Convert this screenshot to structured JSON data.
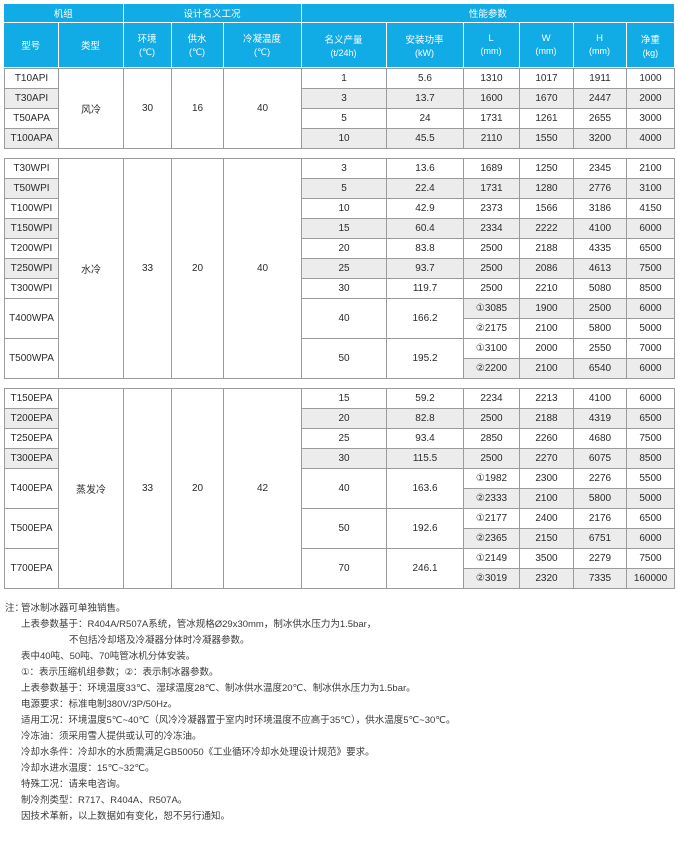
{
  "colors": {
    "accent": "#11ace5",
    "row_shade": "#ececec",
    "border": "#9b9b9b"
  },
  "header": {
    "groups": [
      {
        "label": "机组",
        "span": 2
      },
      {
        "label": "设计名义工况",
        "span": 3
      },
      {
        "label": "性能参数",
        "span": 6
      }
    ],
    "columns": [
      {
        "label": "型号",
        "unit": ""
      },
      {
        "label": "类型",
        "unit": ""
      },
      {
        "label": "环境",
        "unit": "(℃)"
      },
      {
        "label": "供水",
        "unit": "(℃)"
      },
      {
        "label": "冷凝温度",
        "unit": "(℃)"
      },
      {
        "label": "名义产量",
        "unit": "(t/24h)"
      },
      {
        "label": "安装功率",
        "unit": "(kW)"
      },
      {
        "label": "L",
        "unit": "(mm)"
      },
      {
        "label": "W",
        "unit": "(mm)"
      },
      {
        "label": "H",
        "unit": "(mm)"
      },
      {
        "label": "净重",
        "unit": "(kg)"
      }
    ]
  },
  "sections": [
    {
      "type": "风冷",
      "ambient": "30",
      "supply": "16",
      "cond_temp": "40",
      "models": [
        {
          "model": "T10API",
          "capacity": "1",
          "power": "5.6",
          "dims": [
            {
              "L": "1310",
              "W": "1017",
              "H": "1911",
              "weight": "1000",
              "shaded": false
            }
          ]
        },
        {
          "model": "T30API",
          "capacity": "3",
          "power": "13.7",
          "dims": [
            {
              "L": "1600",
              "W": "1670",
              "H": "2447",
              "weight": "2000",
              "shaded": true
            }
          ]
        },
        {
          "model": "T50APA",
          "capacity": "5",
          "power": "24",
          "dims": [
            {
              "L": "1731",
              "W": "1261",
              "H": "2655",
              "weight": "3000",
              "shaded": false
            }
          ]
        },
        {
          "model": "T100APA",
          "capacity": "10",
          "power": "45.5",
          "dims": [
            {
              "L": "2110",
              "W": "1550",
              "H": "3200",
              "weight": "4000",
              "shaded": true
            }
          ]
        }
      ]
    },
    {
      "type": "水冷",
      "ambient": "33",
      "supply": "20",
      "cond_temp": "40",
      "models": [
        {
          "model": "T30WPI",
          "capacity": "3",
          "power": "13.6",
          "dims": [
            {
              "L": "1689",
              "W": "1250",
              "H": "2345",
              "weight": "2100",
              "shaded": false
            }
          ]
        },
        {
          "model": "T50WPI",
          "capacity": "5",
          "power": "22.4",
          "dims": [
            {
              "L": "1731",
              "W": "1280",
              "H": "2776",
              "weight": "3100",
              "shaded": true
            }
          ]
        },
        {
          "model": "T100WPI",
          "capacity": "10",
          "power": "42.9",
          "dims": [
            {
              "L": "2373",
              "W": "1566",
              "H": "3186",
              "weight": "4150",
              "shaded": false
            }
          ]
        },
        {
          "model": "T150WPI",
          "capacity": "15",
          "power": "60.4",
          "dims": [
            {
              "L": "2334",
              "W": "2222",
              "H": "4100",
              "weight": "6000",
              "shaded": true
            }
          ]
        },
        {
          "model": "T200WPI",
          "capacity": "20",
          "power": "83.8",
          "dims": [
            {
              "L": "2500",
              "W": "2188",
              "H": "4335",
              "weight": "6500",
              "shaded": false
            }
          ]
        },
        {
          "model": "T250WPI",
          "capacity": "25",
          "power": "93.7",
          "dims": [
            {
              "L": "2500",
              "W": "2086",
              "H": "4613",
              "weight": "7500",
              "shaded": true
            }
          ]
        },
        {
          "model": "T300WPI",
          "capacity": "30",
          "power": "119.7",
          "dims": [
            {
              "L": "2500",
              "W": "2210",
              "H": "5080",
              "weight": "8500",
              "shaded": false
            }
          ]
        },
        {
          "model": "T400WPA",
          "capacity": "40",
          "power": "166.2",
          "dims": [
            {
              "L": "①3085",
              "W": "1900",
              "H": "2500",
              "weight": "6000",
              "shaded": true
            },
            {
              "L": "②2175",
              "W": "2100",
              "H": "5800",
              "weight": "5000",
              "shaded": false
            }
          ]
        },
        {
          "model": "T500WPA",
          "capacity": "50",
          "power": "195.2",
          "dims": [
            {
              "L": "①3100",
              "W": "2000",
              "H": "2550",
              "weight": "7000",
              "shaded": false
            },
            {
              "L": "②2200",
              "W": "2100",
              "H": "6540",
              "weight": "6000",
              "shaded": true
            }
          ]
        }
      ]
    },
    {
      "type": "蒸发冷",
      "ambient": "33",
      "supply": "20",
      "cond_temp": "42",
      "models": [
        {
          "model": "T150EPA",
          "capacity": "15",
          "power": "59.2",
          "dims": [
            {
              "L": "2234",
              "W": "2213",
              "H": "4100",
              "weight": "6000",
              "shaded": false
            }
          ]
        },
        {
          "model": "T200EPA",
          "capacity": "20",
          "power": "82.8",
          "dims": [
            {
              "L": "2500",
              "W": "2188",
              "H": "4319",
              "weight": "6500",
              "shaded": true
            }
          ]
        },
        {
          "model": "T250EPA",
          "capacity": "25",
          "power": "93.4",
          "dims": [
            {
              "L": "2850",
              "W": "2260",
              "H": "4680",
              "weight": "7500",
              "shaded": false
            }
          ]
        },
        {
          "model": "T300EPA",
          "capacity": "30",
          "power": "115.5",
          "dims": [
            {
              "L": "2500",
              "W": "2270",
              "H": "6075",
              "weight": "8500",
              "shaded": true
            }
          ]
        },
        {
          "model": "T400EPA",
          "capacity": "40",
          "power": "163.6",
          "dims": [
            {
              "L": "①1982",
              "W": "2300",
              "H": "2276",
              "weight": "5500",
              "shaded": false
            },
            {
              "L": "②2333",
              "W": "2100",
              "H": "5800",
              "weight": "5000",
              "shaded": true
            }
          ]
        },
        {
          "model": "T500EPA",
          "capacity": "50",
          "power": "192.6",
          "dims": [
            {
              "L": "①2177",
              "W": "2400",
              "H": "2176",
              "weight": "6500",
              "shaded": false
            },
            {
              "L": "②2365",
              "W": "2150",
              "H": "6751",
              "weight": "6000",
              "shaded": true
            }
          ]
        },
        {
          "model": "T700EPA",
          "capacity": "70",
          "power": "246.1",
          "dims": [
            {
              "L": "①2149",
              "W": "3500",
              "H": "2279",
              "weight": "7500",
              "shaded": false
            },
            {
              "L": "②3019",
              "W": "2320",
              "H": "7335",
              "weight": "160000",
              "shaded": true
            }
          ]
        }
      ]
    }
  ],
  "notes": {
    "tag": "注：",
    "lines": [
      {
        "text": "管冰制冰器可单独销售。",
        "indent": 0
      },
      {
        "text": "上表参数基于：R404A/R507A系统，管冰规格Ø29x30mm，制冰供水压力为1.5bar，",
        "indent": 0
      },
      {
        "text": "不包括冷却塔及冷凝器分体时冷凝器参数。",
        "indent": 1
      },
      {
        "text": "表中40吨、50吨、70吨管冰机分体安装。",
        "indent": 0
      },
      {
        "text": "①：表示压缩机组参数；②：表示制冰器参数。",
        "indent": 0
      },
      {
        "text": "上表参数基于：环境温度33℃、湿球温度28℃、制冰供水温度20℃、制冰供水压力为1.5bar。",
        "indent": 0
      },
      {
        "text": "电源要求：标准电制380V/3P/50Hz。",
        "indent": 0
      },
      {
        "text": "适用工况：环境温度5℃~40℃（风冷冷凝器置于室内时环境温度不应高于35℃），供水温度5℃~30℃。",
        "indent": 0
      },
      {
        "text": "冷冻油：须采用雪人提供或认可的冷冻油。",
        "indent": 0
      },
      {
        "text": "冷却水条件：冷却水的水质需满足GB50050《工业循环冷却水处理设计规范》要求。",
        "indent": 0
      },
      {
        "text": "冷却水进水温度：15℃~32℃。",
        "indent": 0
      },
      {
        "text": "特殊工况：请来电咨询。",
        "indent": 0
      },
      {
        "text": "制冷剂类型：R717、R404A、R507A。",
        "indent": 0
      },
      {
        "text": "因技术革新，以上数据如有变化，恕不另行通知。",
        "indent": 0
      }
    ]
  }
}
